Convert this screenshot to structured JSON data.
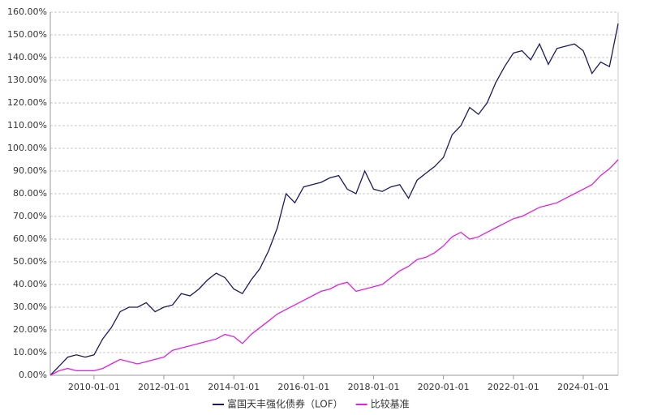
{
  "chart_data": {
    "type": "line",
    "x": [
      "2008-10-01",
      "2009-01-01",
      "2009-04-01",
      "2009-07-01",
      "2009-10-01",
      "2010-01-01",
      "2010-04-01",
      "2010-07-01",
      "2010-10-01",
      "2011-01-01",
      "2011-04-01",
      "2011-07-01",
      "2011-10-01",
      "2012-01-01",
      "2012-04-01",
      "2012-07-01",
      "2012-10-01",
      "2013-01-01",
      "2013-04-01",
      "2013-07-01",
      "2013-10-01",
      "2014-01-01",
      "2014-04-01",
      "2014-07-01",
      "2014-10-01",
      "2015-01-01",
      "2015-04-01",
      "2015-07-01",
      "2015-10-01",
      "2016-01-01",
      "2016-04-01",
      "2016-07-01",
      "2016-10-01",
      "2017-01-01",
      "2017-04-01",
      "2017-07-01",
      "2017-10-01",
      "2018-01-01",
      "2018-04-01",
      "2018-07-01",
      "2018-10-01",
      "2019-01-01",
      "2019-04-01",
      "2019-07-01",
      "2019-10-01",
      "2020-01-01",
      "2020-04-01",
      "2020-07-01",
      "2020-10-01",
      "2021-01-01",
      "2021-04-01",
      "2021-07-01",
      "2021-10-01",
      "2022-01-01",
      "2022-04-01",
      "2022-07-01",
      "2022-10-01",
      "2023-01-01",
      "2023-04-01",
      "2023-07-01",
      "2023-10-01",
      "2024-01-01",
      "2024-04-01",
      "2024-07-01",
      "2024-10-01",
      "2024-12-31"
    ],
    "series": [
      {
        "name": "富国天丰强化债券（LOF）",
        "color": "#1a1a5e",
        "values": [
          0,
          4,
          8,
          9,
          8,
          9,
          16,
          21,
          28,
          30,
          30,
          32,
          28,
          30,
          31,
          36,
          35,
          38,
          42,
          45,
          43,
          38,
          36,
          42,
          47,
          55,
          65,
          80,
          76,
          83,
          84,
          85,
          87,
          88,
          82,
          80,
          90,
          82,
          81,
          83,
          84,
          78,
          86,
          89,
          92,
          96,
          106,
          110,
          118,
          115,
          120,
          129,
          136,
          142,
          143,
          139,
          146,
          137,
          144,
          145,
          146,
          143,
          133,
          138,
          136,
          155
        ]
      },
      {
        "name": "比较基准",
        "color": "#e020e0",
        "values": [
          0,
          2,
          3,
          2,
          2,
          2,
          3,
          5,
          7,
          6,
          5,
          6,
          7,
          8,
          11,
          12,
          13,
          14,
          15,
          16,
          18,
          17,
          14,
          18,
          21,
          24,
          27,
          29,
          31,
          33,
          35,
          37,
          38,
          40,
          41,
          37,
          38,
          39,
          40,
          43,
          46,
          48,
          51,
          52,
          54,
          57,
          61,
          63,
          60,
          61,
          63,
          65,
          67,
          69,
          70,
          72,
          74,
          75,
          76,
          78,
          80,
          82,
          84,
          88,
          91,
          95
        ]
      }
    ],
    "xlim": [
      "2008-10-01",
      "2024-12-31"
    ],
    "xticks": [
      "2010-01-01",
      "2012-01-01",
      "2014-01-01",
      "2016-01-01",
      "2018-01-01",
      "2020-01-01",
      "2022-01-01",
      "2024-01-01"
    ],
    "ylim": [
      0,
      160
    ],
    "yticks": [
      {
        "value": 0,
        "label": "0.00%"
      },
      {
        "value": 10,
        "label": "10.00%"
      },
      {
        "value": 20,
        "label": "20.00%"
      },
      {
        "value": 30,
        "label": "30.00%"
      },
      {
        "value": 40,
        "label": "40.00%"
      },
      {
        "value": 50,
        "label": "50.00%"
      },
      {
        "value": 60,
        "label": "60.00%"
      },
      {
        "value": 70,
        "label": "70.00%"
      },
      {
        "value": 80,
        "label": "80.00%"
      },
      {
        "value": 90,
        "label": "90.00%"
      },
      {
        "value": 100,
        "label": "100.00%"
      },
      {
        "value": 110,
        "label": "110.00%"
      },
      {
        "value": 120,
        "label": "120.00%"
      },
      {
        "value": 130,
        "label": "130.00%"
      },
      {
        "value": 140,
        "label": "140.00%"
      },
      {
        "value": 150,
        "label": "150.00%"
      },
      {
        "value": 160,
        "label": "160.00%"
      }
    ],
    "grid": true
  }
}
